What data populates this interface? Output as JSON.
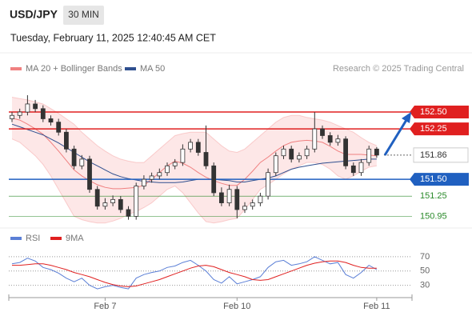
{
  "header": {
    "symbol": "USD/JPY",
    "interval": "30 MIN",
    "timestamp": "Tuesday, February 11, 2025 12:40:45 AM CET",
    "credit": "Research © 2025 Trading Central"
  },
  "chart_data": [
    {
      "type": "candlestick",
      "open": [
        152.4,
        152.45,
        152.5,
        152.62,
        152.55,
        152.4,
        152.35,
        152.2,
        151.95,
        151.7,
        151.8,
        151.35,
        151.1,
        151.15,
        151.2,
        151.05,
        150.95,
        151.4,
        151.5,
        151.55,
        151.6,
        151.7,
        151.75,
        151.95,
        152.05,
        151.9,
        151.7,
        151.3,
        151.15,
        151.35,
        151.05,
        151.1,
        151.15,
        151.25,
        151.6,
        151.85,
        151.95,
        151.8,
        151.85,
        151.95,
        152.25,
        152.15,
        152.05,
        152.1,
        151.7,
        151.6,
        151.75,
        151.95
      ],
      "high": [
        152.5,
        152.55,
        152.75,
        152.68,
        152.6,
        152.45,
        152.4,
        152.25,
        152.0,
        151.86,
        151.85,
        151.4,
        151.22,
        151.26,
        151.25,
        151.1,
        151.45,
        151.56,
        151.6,
        151.66,
        151.75,
        151.8,
        152.02,
        152.1,
        152.1,
        152.3,
        151.75,
        151.38,
        151.42,
        151.4,
        151.16,
        151.2,
        151.3,
        151.66,
        151.9,
        152.0,
        152.0,
        151.9,
        152.0,
        152.5,
        152.3,
        152.2,
        152.16,
        152.14,
        151.75,
        151.8,
        152.0,
        151.98
      ],
      "low": [
        152.35,
        152.4,
        152.45,
        152.5,
        152.35,
        152.3,
        152.15,
        151.9,
        151.65,
        151.65,
        151.3,
        151.05,
        151.05,
        151.1,
        151.0,
        150.9,
        150.9,
        151.35,
        151.45,
        151.5,
        151.55,
        151.65,
        151.7,
        151.9,
        151.85,
        151.65,
        151.25,
        151.1,
        151.1,
        150.92,
        151.0,
        151.05,
        151.1,
        151.2,
        151.55,
        151.8,
        151.75,
        151.75,
        151.8,
        151.9,
        152.1,
        152.0,
        152.0,
        151.65,
        151.55,
        151.55,
        151.7,
        151.82
      ],
      "close": [
        152.45,
        152.5,
        152.62,
        152.55,
        152.4,
        152.35,
        152.2,
        151.95,
        151.7,
        151.8,
        151.35,
        151.1,
        151.15,
        151.2,
        151.05,
        150.95,
        151.4,
        151.5,
        151.55,
        151.6,
        151.7,
        151.75,
        151.95,
        152.05,
        151.9,
        151.7,
        151.3,
        151.15,
        151.35,
        151.05,
        151.1,
        151.15,
        151.25,
        151.6,
        151.85,
        151.95,
        151.8,
        151.85,
        151.95,
        152.25,
        152.15,
        152.05,
        152.1,
        151.7,
        151.6,
        151.75,
        151.95,
        151.86
      ],
      "up_color": "#ffffff",
      "down_color": "#333333",
      "bollinger": {
        "name": "MA 20 + Bollinger Bands",
        "color": "#f08080",
        "fill": "#fde3e3",
        "middle": [
          152.41,
          152.38,
          152.32,
          152.25,
          152.17,
          152.05,
          151.92,
          151.78,
          151.64,
          151.55,
          151.48,
          151.42,
          151.38,
          151.36,
          151.36,
          151.37,
          151.38,
          151.41,
          151.5,
          151.6,
          151.7,
          151.77,
          151.74,
          151.68,
          151.6,
          151.53,
          151.48,
          151.44,
          151.41,
          151.41,
          151.5,
          151.62,
          151.75,
          151.83,
          151.92,
          152.0,
          152.05,
          152.07,
          152.08,
          152.07,
          152.05,
          151.99,
          151.92,
          151.87,
          151.87,
          151.87,
          151.86,
          151.85
        ],
        "upper": [
          152.72,
          152.7,
          152.68,
          152.65,
          152.62,
          152.55,
          152.48,
          152.4,
          152.32,
          152.2,
          152.1,
          152.0,
          151.92,
          151.85,
          151.8,
          151.77,
          151.75,
          151.75,
          151.85,
          151.95,
          152.05,
          152.15,
          152.18,
          152.2,
          152.2,
          152.2,
          152.1,
          152.0,
          151.92,
          151.9,
          151.95,
          152.05,
          152.15,
          152.25,
          152.35,
          152.42,
          152.45,
          152.45,
          152.42,
          152.4,
          152.38,
          152.35,
          152.3,
          152.25,
          152.2,
          152.12,
          152.05,
          152.0
        ],
        "lower": [
          152.1,
          152.05,
          151.95,
          151.85,
          151.72,
          151.55,
          151.35,
          151.15,
          150.95,
          150.9,
          150.87,
          150.85,
          150.85,
          150.88,
          150.92,
          150.98,
          151.02,
          151.08,
          151.15,
          151.25,
          151.35,
          151.4,
          151.3,
          151.15,
          151.0,
          150.87,
          150.85,
          150.87,
          150.9,
          150.92,
          151.05,
          151.2,
          151.35,
          151.42,
          151.5,
          151.58,
          151.65,
          151.7,
          151.75,
          151.75,
          151.72,
          151.65,
          151.55,
          151.5,
          151.55,
          151.62,
          151.68,
          151.7
        ]
      },
      "ma50": {
        "name": "MA 50",
        "color": "#2f4f8f",
        "values": [
          152.32,
          152.28,
          152.24,
          152.2,
          152.16,
          152.1,
          152.04,
          151.97,
          151.9,
          151.83,
          151.76,
          151.7,
          151.64,
          151.58,
          151.54,
          151.51,
          151.49,
          151.47,
          151.46,
          151.45,
          151.45,
          151.45,
          151.46,
          151.48,
          151.5,
          151.5,
          151.5,
          151.49,
          151.48,
          151.46,
          151.46,
          151.48,
          151.5,
          151.52,
          151.55,
          151.6,
          151.65,
          151.68,
          151.7,
          151.72,
          151.74,
          151.75,
          151.76,
          151.77,
          151.78,
          151.79,
          151.8,
          151.8
        ]
      },
      "levels": [
        {
          "value": 152.5,
          "label": "152.50",
          "color": "#e02020",
          "style": "box"
        },
        {
          "value": 152.25,
          "label": "152.25",
          "color": "#e02020",
          "style": "box"
        },
        {
          "value": 151.86,
          "color": "#333333",
          "style": "outline"
        },
        {
          "value": 151.5,
          "label": "151.50",
          "color": "#2060c0",
          "style": "box"
        },
        {
          "value": 151.25,
          "color": "#2a8a2a",
          "style": "text"
        },
        {
          "value": 150.95,
          "color": "#2a8a2a",
          "style": "text"
        }
      ],
      "ylim": [
        150.8,
        153.0
      ]
    },
    {
      "type": "line",
      "categories": [
        null,
        null,
        null,
        null,
        null,
        null,
        null,
        null,
        null,
        null,
        null,
        null,
        "Feb 7",
        null,
        null,
        null,
        null,
        null,
        null,
        null,
        null,
        null,
        null,
        null,
        null,
        null,
        null,
        null,
        null,
        "Feb 10",
        null,
        null,
        null,
        null,
        null,
        null,
        null,
        null,
        null,
        null,
        null,
        null,
        null,
        null,
        null,
        null,
        null,
        "Feb 11"
      ],
      "series": [
        {
          "name": "RSI",
          "color": "#5b7fd6",
          "values": [
            60,
            62,
            68,
            64,
            55,
            52,
            47,
            40,
            35,
            40,
            30,
            25,
            28,
            30,
            27,
            25,
            40,
            45,
            48,
            50,
            55,
            57,
            62,
            65,
            58,
            50,
            38,
            33,
            42,
            32,
            35,
            38,
            42,
            55,
            63,
            65,
            58,
            60,
            63,
            70,
            65,
            60,
            62,
            45,
            40,
            48,
            58,
            52
          ]
        },
        {
          "name": "9MA",
          "color": "#e02020",
          "values": [
            58,
            58,
            59,
            60,
            60,
            58,
            55,
            52,
            48,
            45,
            42,
            38,
            34,
            31,
            29,
            28,
            29,
            32,
            35,
            38,
            42,
            46,
            50,
            54,
            57,
            58,
            56,
            52,
            48,
            45,
            42,
            38,
            37,
            38,
            42,
            46,
            50,
            54,
            58,
            61,
            63,
            64,
            64,
            62,
            58,
            55,
            54,
            54
          ]
        }
      ],
      "ylim": [
        15,
        80
      ],
      "yticks": [
        30,
        50,
        70
      ]
    }
  ]
}
